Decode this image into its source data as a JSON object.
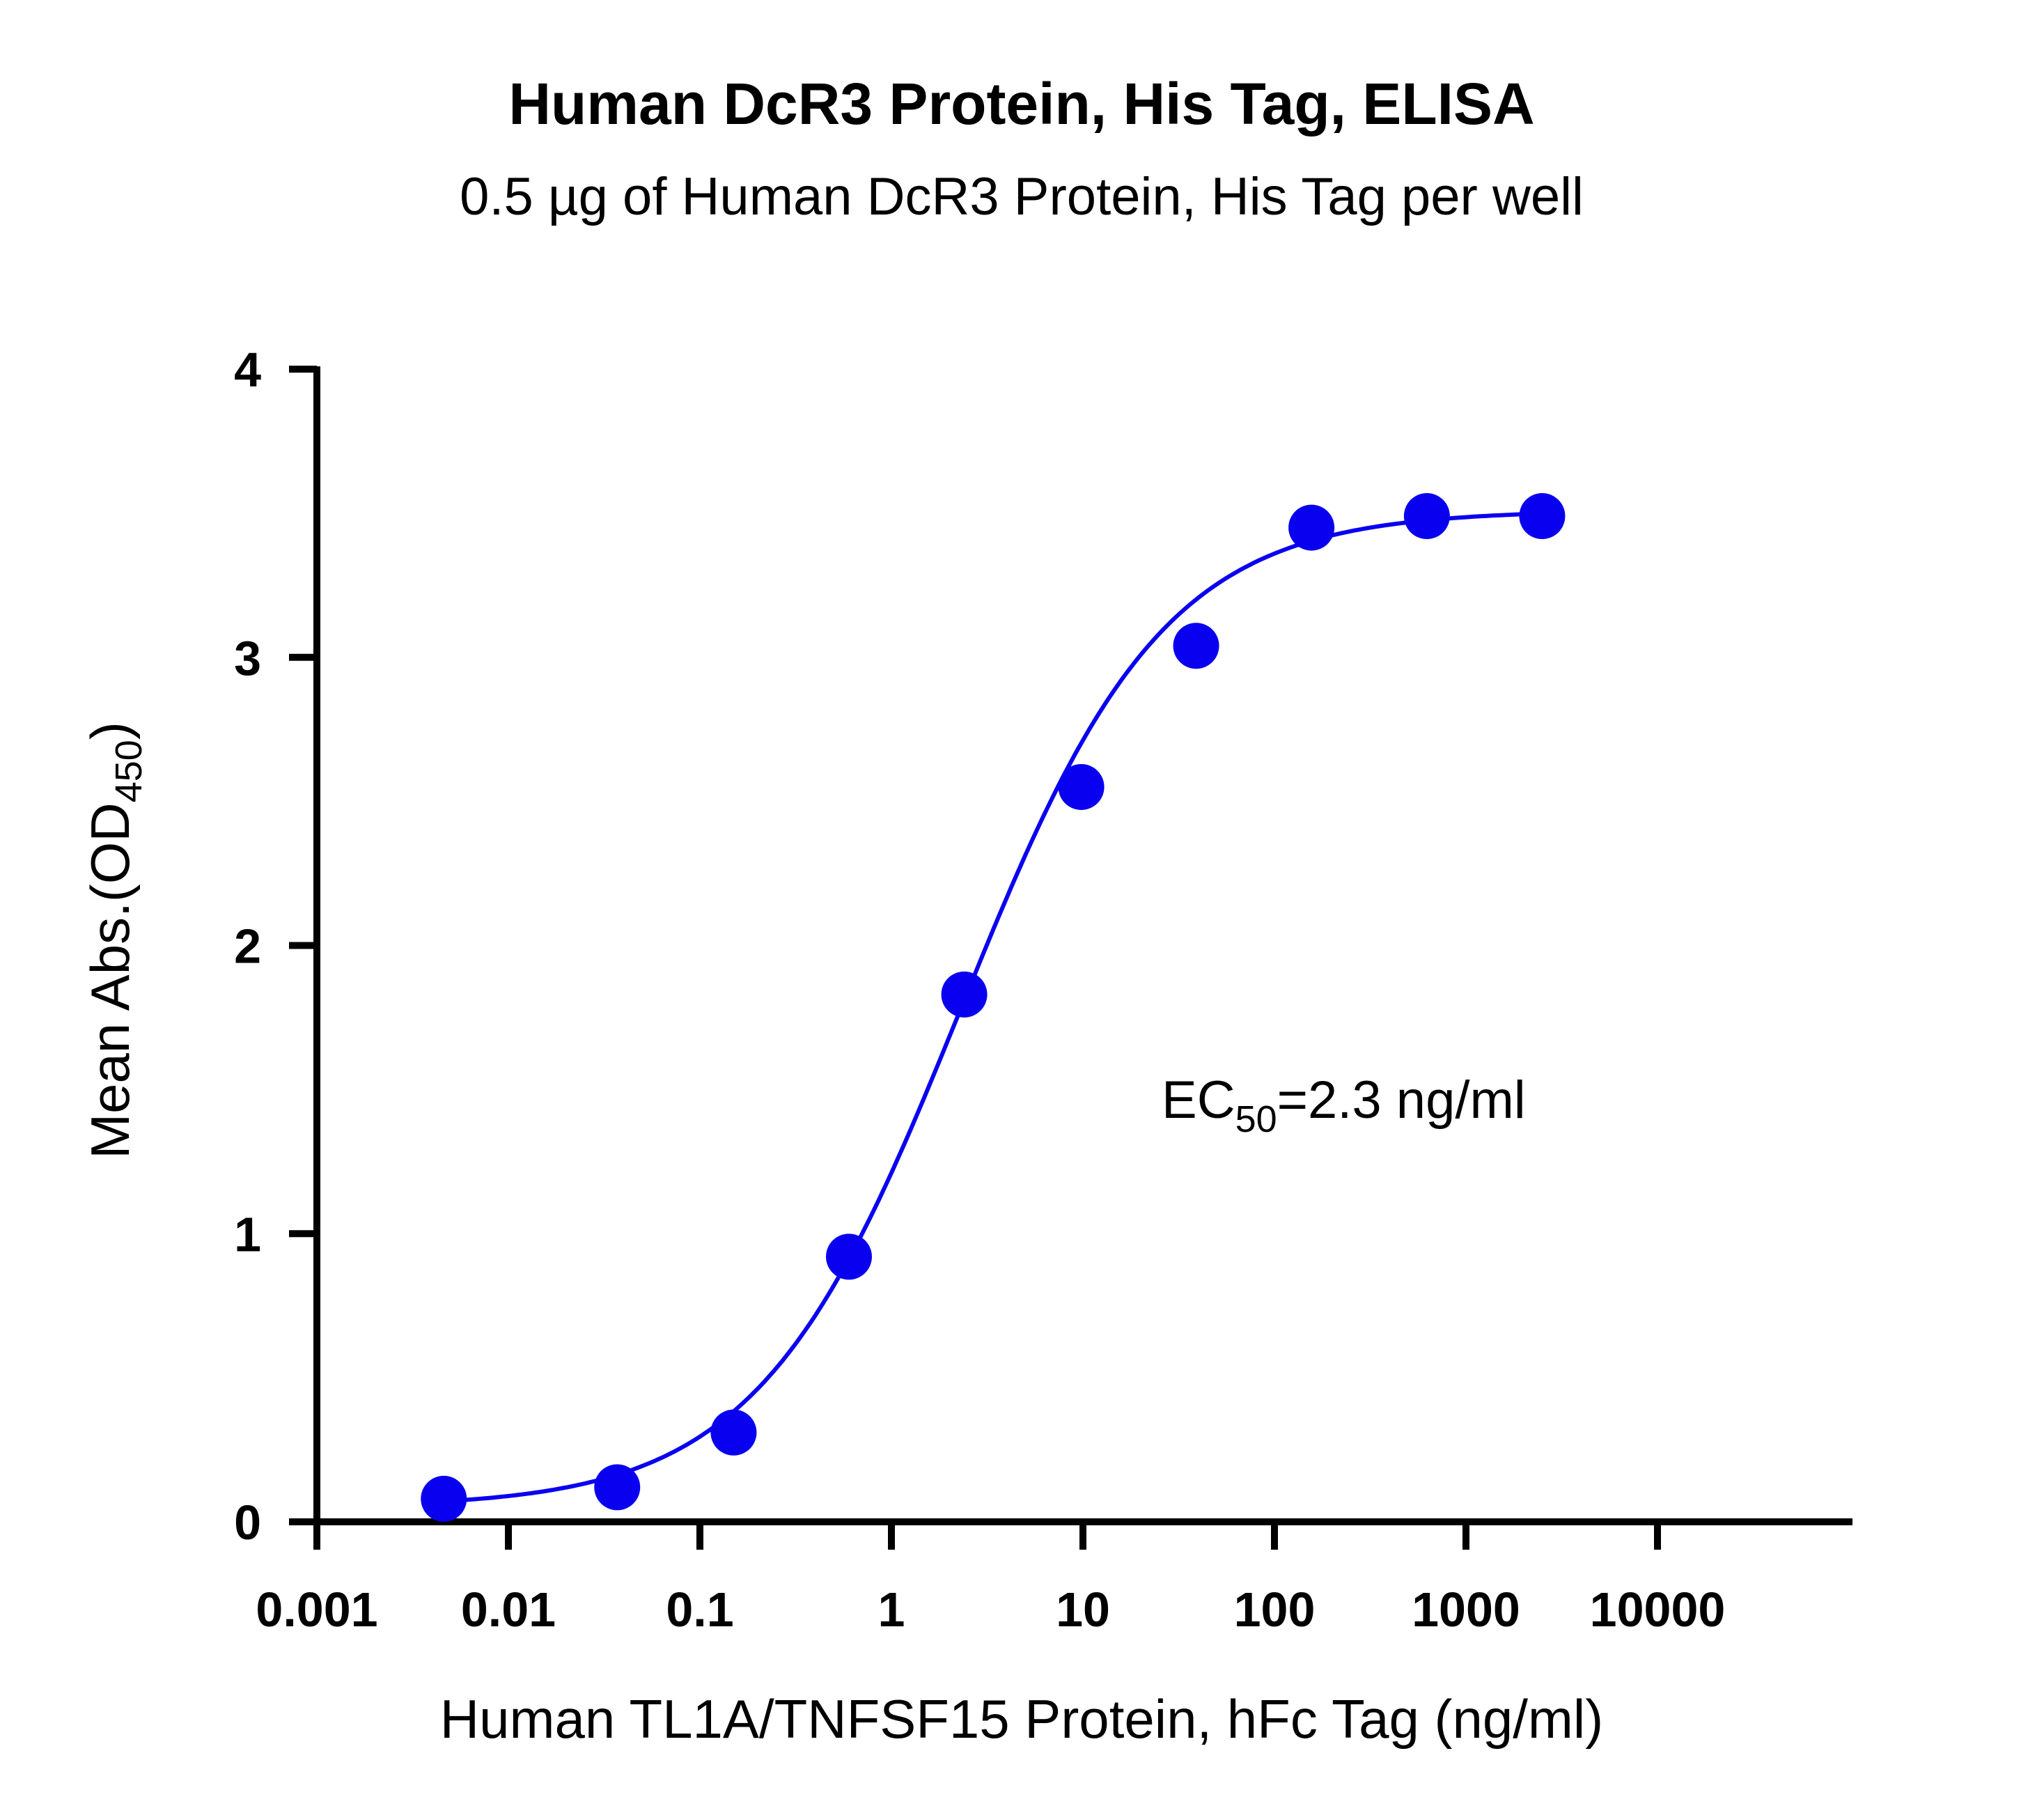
{
  "chart_data": {
    "type": "scatter",
    "title": "Human DcR3 Protein, His Tag, ELISA",
    "subtitle": "0.5 µg of Human DcR3 Protein, His Tag per well",
    "xlabel": "Human TL1A/TNFSF15 Protein, hFc Tag (ng/ml)",
    "ylabel_main": "Mean Abs.(OD",
    "ylabel_sub": "450",
    "ylabel_close": ")",
    "x_scale": "log",
    "xlim": [
      0.001,
      100000
    ],
    "ylim": [
      0,
      4
    ],
    "x_ticks": [
      0.001,
      0.01,
      0.1,
      1,
      10,
      100,
      1000,
      10000
    ],
    "x_tick_labels": [
      "0.001",
      "0.01",
      "0.1",
      "1",
      "10",
      "100",
      "1000",
      "10000"
    ],
    "y_ticks": [
      0,
      1,
      2,
      3,
      4
    ],
    "y_tick_labels": [
      "0",
      "1",
      "2",
      "3",
      "4"
    ],
    "grid": false,
    "color": "#0a00f0",
    "series": [
      {
        "x": [
          0.0046,
          0.037,
          0.15,
          0.6,
          2.4,
          9.8,
          39,
          156,
          625,
          2500
        ],
        "y": [
          0.08,
          0.12,
          0.31,
          0.92,
          1.83,
          2.55,
          3.04,
          3.45,
          3.49,
          3.49
        ]
      }
    ],
    "fit": {
      "bottom": 0.05,
      "top": 3.51,
      "ec50": 2.3,
      "hill": 0.82
    },
    "annotation": {
      "main": "EC",
      "sub": "50",
      "rest": "=2.3 ng/ml"
    }
  }
}
